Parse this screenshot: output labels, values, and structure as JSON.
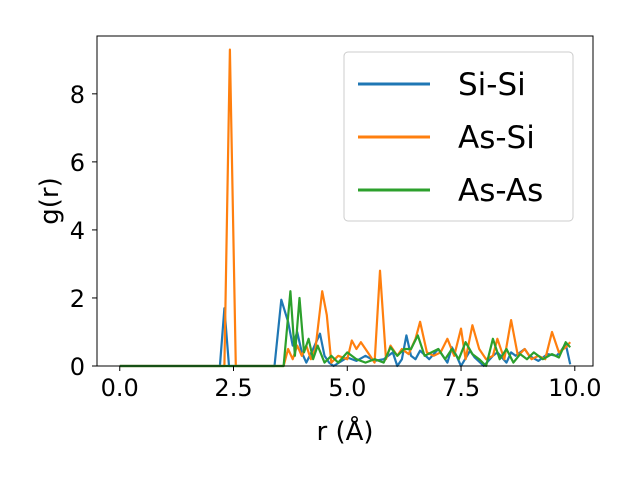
{
  "chart_data": {
    "type": "line",
    "title": "",
    "xlabel": "r (Å)",
    "ylabel": "g(r)",
    "xlim": [
      -0.5,
      10.4
    ],
    "ylim": [
      0,
      9.7
    ],
    "xticks": [
      "0.0",
      "2.5",
      "5.0",
      "7.5",
      "10.0"
    ],
    "xtick_values": [
      0,
      2.5,
      5,
      7.5,
      10
    ],
    "yticks": [
      "0",
      "2",
      "4",
      "6",
      "8"
    ],
    "ytick_values": [
      0,
      2,
      4,
      6,
      8
    ],
    "grid": false,
    "legend_position": "top-right",
    "series": [
      {
        "name": "Si-Si",
        "color": "#1f77b4",
        "x": [
          0.0,
          2.2,
          2.3,
          2.4,
          3.4,
          3.55,
          3.7,
          3.8,
          3.9,
          4.0,
          4.1,
          4.25,
          4.4,
          4.5,
          4.6,
          4.7,
          5.0,
          5.2,
          5.4,
          5.6,
          5.8,
          6.0,
          6.1,
          6.2,
          6.3,
          6.4,
          6.5,
          6.6,
          6.8,
          6.9,
          7.0,
          7.1,
          7.2,
          7.3,
          7.4,
          7.5,
          7.7,
          7.8,
          8.0,
          8.2,
          8.3,
          8.5,
          8.6,
          8.7,
          8.9,
          9.0,
          9.2,
          9.4,
          9.6,
          9.7,
          9.8,
          9.9
        ],
        "y": [
          0,
          0,
          1.7,
          0,
          0,
          1.95,
          1.3,
          0.6,
          1.0,
          0.4,
          0.1,
          0.5,
          0.95,
          0.3,
          0.1,
          0.0,
          0.25,
          0.15,
          0.3,
          0.15,
          0.2,
          0.4,
          0.0,
          0.2,
          0.9,
          0.3,
          0.2,
          0.45,
          0.2,
          0.35,
          0.5,
          0.3,
          0.1,
          0.55,
          0.3,
          0.0,
          0.45,
          0.25,
          0.0,
          0.3,
          0.4,
          0.1,
          0.4,
          0.3,
          0.5,
          0.3,
          0.15,
          0.35,
          0.3,
          0.45,
          0.65,
          0.05
        ]
      },
      {
        "name": "As-Si",
        "color": "#ff7f0e",
        "x": [
          0.0,
          2.3,
          2.42,
          2.55,
          3.6,
          3.7,
          3.8,
          3.9,
          4.0,
          4.1,
          4.2,
          4.3,
          4.45,
          4.55,
          4.65,
          4.8,
          5.0,
          5.1,
          5.2,
          5.3,
          5.45,
          5.6,
          5.72,
          5.85,
          5.95,
          6.1,
          6.2,
          6.35,
          6.5,
          6.6,
          6.75,
          6.9,
          7.05,
          7.2,
          7.35,
          7.5,
          7.6,
          7.75,
          7.9,
          8.05,
          8.2,
          8.3,
          8.45,
          8.6,
          8.75,
          8.9,
          9.05,
          9.2,
          9.35,
          9.5,
          9.65,
          9.8,
          9.9
        ],
        "y": [
          0,
          0,
          9.3,
          0,
          0,
          0.5,
          0.2,
          0.6,
          0.3,
          0.6,
          0.2,
          0.5,
          2.2,
          1.5,
          0.1,
          0.3,
          0.2,
          0.75,
          0.5,
          0.7,
          0.4,
          0.1,
          2.8,
          0.2,
          0.6,
          0.3,
          0.5,
          0.35,
          0.8,
          1.3,
          0.4,
          0.3,
          0.4,
          0.8,
          0.3,
          1.1,
          0.2,
          1.2,
          0.5,
          0.2,
          0.3,
          0.8,
          0.2,
          1.35,
          0.3,
          0.5,
          0.2,
          0.3,
          0.2,
          1.0,
          0.4,
          0.55,
          0.7
        ]
      },
      {
        "name": "As-As",
        "color": "#2ca02c",
        "x": [
          0.0,
          3.6,
          3.75,
          3.85,
          3.95,
          4.05,
          4.15,
          4.25,
          4.35,
          4.5,
          4.65,
          4.8,
          5.0,
          5.2,
          5.4,
          5.6,
          5.8,
          5.95,
          6.1,
          6.25,
          6.4,
          6.55,
          6.7,
          6.85,
          7.0,
          7.15,
          7.3,
          7.45,
          7.6,
          7.75,
          7.9,
          8.05,
          8.2,
          8.35,
          8.5,
          8.65,
          8.8,
          8.95,
          9.1,
          9.3,
          9.5,
          9.65,
          9.8,
          9.9
        ],
        "y": [
          0,
          0,
          2.2,
          0.3,
          2.0,
          0.4,
          0.8,
          0.2,
          0.6,
          0.1,
          0.3,
          0.1,
          0.4,
          0.2,
          0.1,
          0.2,
          0.1,
          0.55,
          0.3,
          0.5,
          0.5,
          0.9,
          0.3,
          0.4,
          0.5,
          0.2,
          0.5,
          0.2,
          0.7,
          0.35,
          0.2,
          0.0,
          0.8,
          0.2,
          0.5,
          0.1,
          0.35,
          0.2,
          0.4,
          0.2,
          0.35,
          0.25,
          0.7,
          0.55
        ]
      }
    ]
  }
}
